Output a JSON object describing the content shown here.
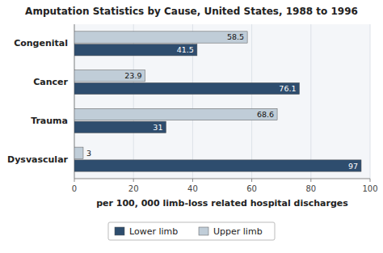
{
  "chart_data": {
    "type": "bar",
    "orientation": "horizontal",
    "title": "Amputation Statistics by Cause, United States, 1988 to 1996",
    "xlabel": "per 100, 000 limb-loss related hospital discharges",
    "categories": [
      "Congenital",
      "Cancer",
      "Trauma",
      "Dysvascular"
    ],
    "series": [
      {
        "name": "Lower limb",
        "color": "#2e4d6e",
        "values": [
          41.5,
          76.1,
          31,
          97
        ]
      },
      {
        "name": "Upper limb",
        "color": "#c0cdd8",
        "values": [
          58.5,
          23.9,
          68.6,
          3
        ]
      }
    ],
    "xlim": [
      0,
      100
    ],
    "xticks": [
      0,
      20,
      40,
      60,
      80,
      100
    ],
    "grid": true,
    "data_labels": true,
    "legend": "bottom"
  }
}
